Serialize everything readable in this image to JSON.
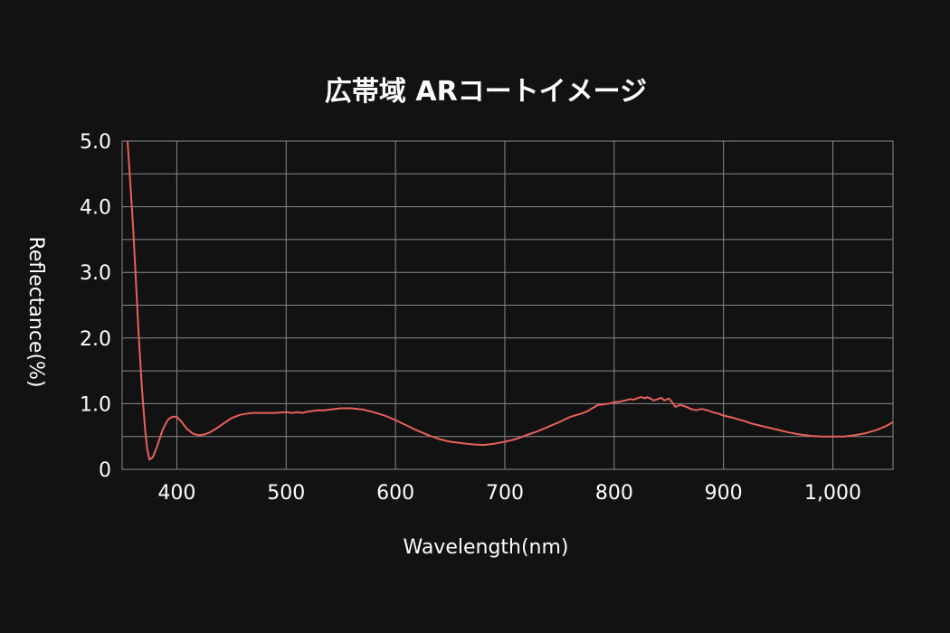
{
  "chart_data": {
    "type": "line",
    "title": "広帯域 ARコートイメージ",
    "xlabel": "Wavelength(nm)",
    "ylabel": "Reflectance(%)",
    "xlim": [
      350,
      1055
    ],
    "ylim": [
      0,
      5
    ],
    "x_ticks": [
      400,
      500,
      600,
      700,
      800,
      900,
      1000
    ],
    "x_tick_labels": [
      "400",
      "500",
      "600",
      "700",
      "800",
      "900",
      "1,000"
    ],
    "y_ticks": [
      0,
      1,
      2,
      3,
      4,
      5
    ],
    "y_tick_labels": [
      "0",
      "1.0",
      "2.0",
      "3.0",
      "4.0",
      "5.0"
    ],
    "y_minor_gridlines": [
      0.5,
      1.5,
      2.5,
      3.5,
      4.5
    ],
    "grid": true,
    "line_color": "#e8605a",
    "series": [
      {
        "x": [
          355,
          360,
          365,
          368,
          371,
          373,
          375,
          378,
          382,
          387,
          392,
          396,
          400,
          404,
          409,
          415,
          420,
          425,
          430,
          436,
          443,
          450,
          458,
          465,
          470,
          475,
          480,
          490,
          500,
          505,
          510,
          515,
          520,
          525,
          530,
          535,
          540,
          545,
          550,
          560,
          570,
          580,
          590,
          600,
          610,
          620,
          630,
          640,
          650,
          660,
          670,
          680,
          690,
          700,
          710,
          720,
          730,
          740,
          750,
          760,
          770,
          775,
          780,
          785,
          790,
          795,
          800,
          805,
          810,
          815,
          818,
          822,
          825,
          828,
          830,
          833,
          836,
          840,
          843,
          846,
          850,
          853,
          856,
          860,
          865,
          870,
          875,
          880,
          885,
          890,
          895,
          900,
          910,
          920,
          925,
          930,
          935,
          940,
          945,
          950,
          960,
          970,
          980,
          990,
          1000,
          1010,
          1020,
          1030,
          1040,
          1050,
          1055
        ],
        "y": [
          5.0,
          3.7,
          2.1,
          1.25,
          0.6,
          0.3,
          0.15,
          0.18,
          0.35,
          0.6,
          0.76,
          0.8,
          0.8,
          0.73,
          0.62,
          0.54,
          0.52,
          0.53,
          0.56,
          0.62,
          0.7,
          0.78,
          0.83,
          0.85,
          0.86,
          0.86,
          0.86,
          0.86,
          0.87,
          0.86,
          0.87,
          0.86,
          0.88,
          0.89,
          0.9,
          0.9,
          0.91,
          0.92,
          0.93,
          0.93,
          0.91,
          0.87,
          0.82,
          0.75,
          0.67,
          0.59,
          0.52,
          0.46,
          0.42,
          0.4,
          0.38,
          0.37,
          0.39,
          0.42,
          0.46,
          0.52,
          0.58,
          0.65,
          0.72,
          0.8,
          0.85,
          0.88,
          0.93,
          0.98,
          0.99,
          1.0,
          1.02,
          1.03,
          1.05,
          1.07,
          1.06,
          1.09,
          1.1,
          1.08,
          1.1,
          1.08,
          1.05,
          1.07,
          1.09,
          1.05,
          1.08,
          1.02,
          0.95,
          0.98,
          0.96,
          0.92,
          0.9,
          0.92,
          0.9,
          0.87,
          0.85,
          0.82,
          0.78,
          0.73,
          0.7,
          0.68,
          0.66,
          0.64,
          0.62,
          0.6,
          0.56,
          0.53,
          0.51,
          0.5,
          0.5,
          0.5,
          0.52,
          0.55,
          0.6,
          0.67,
          0.72
        ]
      }
    ]
  }
}
